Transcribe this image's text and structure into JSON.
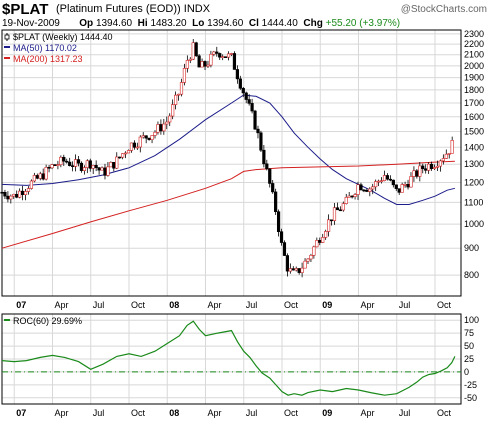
{
  "header": {
    "title": "$PLAT",
    "subtitle": "(Platinum Futures (EOD))",
    "exchange": "INDX",
    "watermark": "@StockCharts.com",
    "date": "19-Nov-2009",
    "open_label": "Op",
    "open": "1394.60",
    "high_label": "Hi",
    "high": "1483.20",
    "low_label": "Lo",
    "low": "1394.60",
    "close_label": "Cl",
    "close": "1444.40",
    "change_label": "Chg",
    "change": "+55.20 (+3.97%)",
    "change_color": "#1a8a1a"
  },
  "chart_data": [
    {
      "type": "candlestick",
      "panel": "price",
      "legend_position": "top-left",
      "legend": [
        {
          "text": "$PLAT (Weekly) 1444.40",
          "color": "#000000",
          "icon": "candle-icon"
        },
        {
          "text": "MA(50) 1170.02",
          "color": "#1c1c8a"
        },
        {
          "text": "MA(200) 1317.23",
          "color": "#d42020"
        }
      ],
      "y_scale": "log",
      "ylim": [
        730,
        2340
      ],
      "y_ticks": [
        800,
        900,
        1000,
        1100,
        1200,
        1300,
        1400,
        1500,
        1600,
        1700,
        1800,
        1900,
        2000,
        2100,
        2200,
        2300
      ],
      "x_ticks": [
        {
          "label": "07",
          "t": 2007.0,
          "bold": true
        },
        {
          "label": "Apr",
          "t": 2007.25
        },
        {
          "label": "Jul",
          "t": 2007.5
        },
        {
          "label": "Oct",
          "t": 2007.75
        },
        {
          "label": "08",
          "t": 2008.0,
          "bold": true
        },
        {
          "label": "Apr",
          "t": 2008.25
        },
        {
          "label": "Jul",
          "t": 2008.5
        },
        {
          "label": "Oct",
          "t": 2008.75
        },
        {
          "label": "09",
          "t": 2009.0,
          "bold": true
        },
        {
          "label": "Apr",
          "t": 2009.25
        },
        {
          "label": "Jul",
          "t": 2009.5
        },
        {
          "label": "Oct",
          "t": 2009.75
        }
      ],
      "xlim": [
        2006.92,
        2009.92
      ],
      "price_path": [
        [
          2006.92,
          1150
        ],
        [
          2007.0,
          1130
        ],
        [
          2007.08,
          1180
        ],
        [
          2007.17,
          1230
        ],
        [
          2007.25,
          1290
        ],
        [
          2007.33,
          1320
        ],
        [
          2007.42,
          1290
        ],
        [
          2007.5,
          1310
        ],
        [
          2007.58,
          1250
        ],
        [
          2007.67,
          1320
        ],
        [
          2007.75,
          1410
        ],
        [
          2007.83,
          1450
        ],
        [
          2007.92,
          1500
        ],
        [
          2008.0,
          1570
        ],
        [
          2008.08,
          1790
        ],
        [
          2008.13,
          2050
        ],
        [
          2008.17,
          2160
        ],
        [
          2008.21,
          1980
        ],
        [
          2008.25,
          2010
        ],
        [
          2008.33,
          2130
        ],
        [
          2008.42,
          2070
        ],
        [
          2008.5,
          1780
        ],
        [
          2008.58,
          1530
        ],
        [
          2008.67,
          1190
        ],
        [
          2008.71,
          1060
        ],
        [
          2008.75,
          900
        ],
        [
          2008.79,
          820
        ],
        [
          2008.83,
          800
        ],
        [
          2008.88,
          830
        ],
        [
          2008.92,
          860
        ],
        [
          2009.0,
          950
        ],
        [
          2009.08,
          1040
        ],
        [
          2009.17,
          1100
        ],
        [
          2009.25,
          1190
        ],
        [
          2009.33,
          1170
        ],
        [
          2009.42,
          1240
        ],
        [
          2009.5,
          1150
        ],
        [
          2009.58,
          1210
        ],
        [
          2009.67,
          1280
        ],
        [
          2009.75,
          1310
        ],
        [
          2009.83,
          1370
        ],
        [
          2009.88,
          1444
        ]
      ],
      "series": [
        {
          "name": "MA(50)",
          "color": "#1c1c8a",
          "points": [
            [
              2006.92,
              1190
            ],
            [
              2007.08,
              1185
            ],
            [
              2007.25,
              1195
            ],
            [
              2007.42,
              1215
            ],
            [
              2007.58,
              1240
            ],
            [
              2007.75,
              1280
            ],
            [
              2007.92,
              1350
            ],
            [
              2008.08,
              1450
            ],
            [
              2008.25,
              1580
            ],
            [
              2008.42,
              1700
            ],
            [
              2008.5,
              1760
            ],
            [
              2008.58,
              1750
            ],
            [
              2008.67,
              1700
            ],
            [
              2008.75,
              1600
            ],
            [
              2008.83,
              1490
            ],
            [
              2008.92,
              1400
            ],
            [
              2009.0,
              1330
            ],
            [
              2009.08,
              1270
            ],
            [
              2009.17,
              1220
            ],
            [
              2009.25,
              1190
            ],
            [
              2009.33,
              1160
            ],
            [
              2009.42,
              1120
            ],
            [
              2009.5,
              1090
            ],
            [
              2009.58,
              1090
            ],
            [
              2009.67,
              1110
            ],
            [
              2009.75,
              1130
            ],
            [
              2009.83,
              1160
            ],
            [
              2009.88,
              1170
            ]
          ]
        },
        {
          "name": "MA(200)",
          "color": "#d42020",
          "points": [
            [
              2006.92,
              900
            ],
            [
              2007.25,
              960
            ],
            [
              2007.5,
              1010
            ],
            [
              2007.75,
              1060
            ],
            [
              2008.0,
              1110
            ],
            [
              2008.25,
              1170
            ],
            [
              2008.42,
              1220
            ],
            [
              2008.5,
              1260
            ],
            [
              2008.58,
              1270
            ],
            [
              2008.75,
              1280
            ],
            [
              2009.0,
              1285
            ],
            [
              2009.25,
              1290
            ],
            [
              2009.5,
              1300
            ],
            [
              2009.75,
              1312
            ],
            [
              2009.88,
              1317
            ]
          ]
        }
      ]
    },
    {
      "type": "line",
      "panel": "indicator",
      "legend": [
        {
          "text": "ROC(60) 29.69%",
          "color": "#1a8a1a"
        }
      ],
      "ylim": [
        -62,
        112
      ],
      "y_ticks": [
        -50,
        -25,
        0,
        25,
        50,
        75,
        100
      ],
      "zero_line": true,
      "series": [
        {
          "name": "ROC(60)",
          "color": "#1a8a1a",
          "points": [
            [
              2006.92,
              22
            ],
            [
              2007.0,
              20
            ],
            [
              2007.08,
              22
            ],
            [
              2007.17,
              28
            ],
            [
              2007.25,
              32
            ],
            [
              2007.33,
              28
            ],
            [
              2007.42,
              20
            ],
            [
              2007.5,
              5
            ],
            [
              2007.58,
              15
            ],
            [
              2007.67,
              30
            ],
            [
              2007.75,
              35
            ],
            [
              2007.83,
              30
            ],
            [
              2007.92,
              40
            ],
            [
              2008.0,
              55
            ],
            [
              2008.08,
              70
            ],
            [
              2008.13,
              90
            ],
            [
              2008.17,
              98
            ],
            [
              2008.21,
              82
            ],
            [
              2008.25,
              70
            ],
            [
              2008.33,
              75
            ],
            [
              2008.42,
              80
            ],
            [
              2008.46,
              58
            ],
            [
              2008.5,
              40
            ],
            [
              2008.54,
              28
            ],
            [
              2008.58,
              12
            ],
            [
              2008.62,
              -2
            ],
            [
              2008.67,
              -12
            ],
            [
              2008.71,
              -25
            ],
            [
              2008.75,
              -38
            ],
            [
              2008.79,
              -45
            ],
            [
              2008.83,
              -42
            ],
            [
              2008.88,
              -45
            ],
            [
              2008.92,
              -40
            ],
            [
              2009.0,
              -35
            ],
            [
              2009.08,
              -38
            ],
            [
              2009.17,
              -32
            ],
            [
              2009.25,
              -35
            ],
            [
              2009.33,
              -40
            ],
            [
              2009.42,
              -45
            ],
            [
              2009.5,
              -42
            ],
            [
              2009.58,
              -30
            ],
            [
              2009.63,
              -20
            ],
            [
              2009.67,
              -10
            ],
            [
              2009.71,
              -5
            ],
            [
              2009.75,
              -3
            ],
            [
              2009.79,
              2
            ],
            [
              2009.83,
              8
            ],
            [
              2009.86,
              18
            ],
            [
              2009.88,
              30
            ]
          ]
        }
      ]
    }
  ]
}
